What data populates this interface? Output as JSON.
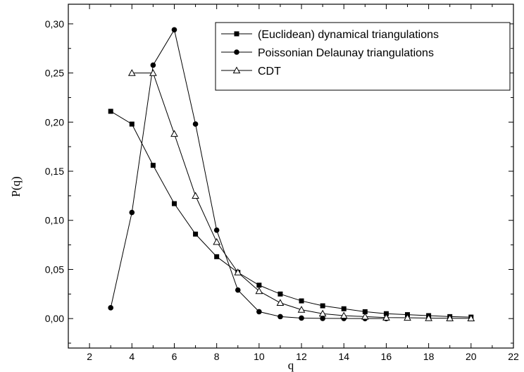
{
  "chart_data": {
    "type": "line",
    "xlabel": "q",
    "ylabel": "P(q)",
    "xlim": [
      1,
      22
    ],
    "ylim": [
      -0.03,
      0.32
    ],
    "x_ticks": [
      2,
      4,
      6,
      8,
      10,
      12,
      14,
      16,
      18,
      20,
      22
    ],
    "x_tick_labels": [
      "2",
      "4",
      "6",
      "8",
      "10",
      "12",
      "14",
      "16",
      "18",
      "20",
      "22"
    ],
    "y_ticks": [
      0.0,
      0.05,
      0.1,
      0.15,
      0.2,
      0.25,
      0.3
    ],
    "y_tick_labels": [
      "0,00",
      "0,05",
      "0,10",
      "0,15",
      "0,20",
      "0,25",
      "0,30"
    ],
    "grid": false,
    "legend_position": "top-right",
    "series": [
      {
        "name": "(Euclidean) dynamical triangulations",
        "marker": "filled-square",
        "color": "#000000",
        "x": [
          3,
          4,
          5,
          6,
          7,
          8,
          9,
          10,
          11,
          12,
          13,
          14,
          15,
          16,
          17,
          18,
          19,
          20
        ],
        "y": [
          0.211,
          0.198,
          0.156,
          0.117,
          0.086,
          0.063,
          0.047,
          0.034,
          0.025,
          0.018,
          0.013,
          0.01,
          0.007,
          0.005,
          0.004,
          0.003,
          0.002,
          0.0015
        ]
      },
      {
        "name": "Poissonian Delaunay triangulations",
        "marker": "filled-circle",
        "color": "#000000",
        "x": [
          3,
          4,
          5,
          6,
          7,
          8,
          9,
          10,
          11,
          12,
          13,
          14,
          15,
          16
        ],
        "y": [
          0.011,
          0.108,
          0.258,
          0.294,
          0.198,
          0.09,
          0.029,
          0.007,
          0.002,
          0.0005,
          0.0002,
          0.0001,
          0.0,
          0.0
        ]
      },
      {
        "name": "CDT",
        "marker": "open-triangle",
        "color": "#000000",
        "x": [
          4,
          5,
          6,
          7,
          8,
          9,
          10,
          11,
          12,
          13,
          14,
          15,
          16,
          17,
          18,
          19,
          20
        ],
        "y": [
          0.25,
          0.25,
          0.188,
          0.125,
          0.078,
          0.047,
          0.028,
          0.016,
          0.009,
          0.005,
          0.003,
          0.002,
          0.001,
          0.0008,
          0.0005,
          0.0003,
          0.0002
        ]
      }
    ]
  }
}
